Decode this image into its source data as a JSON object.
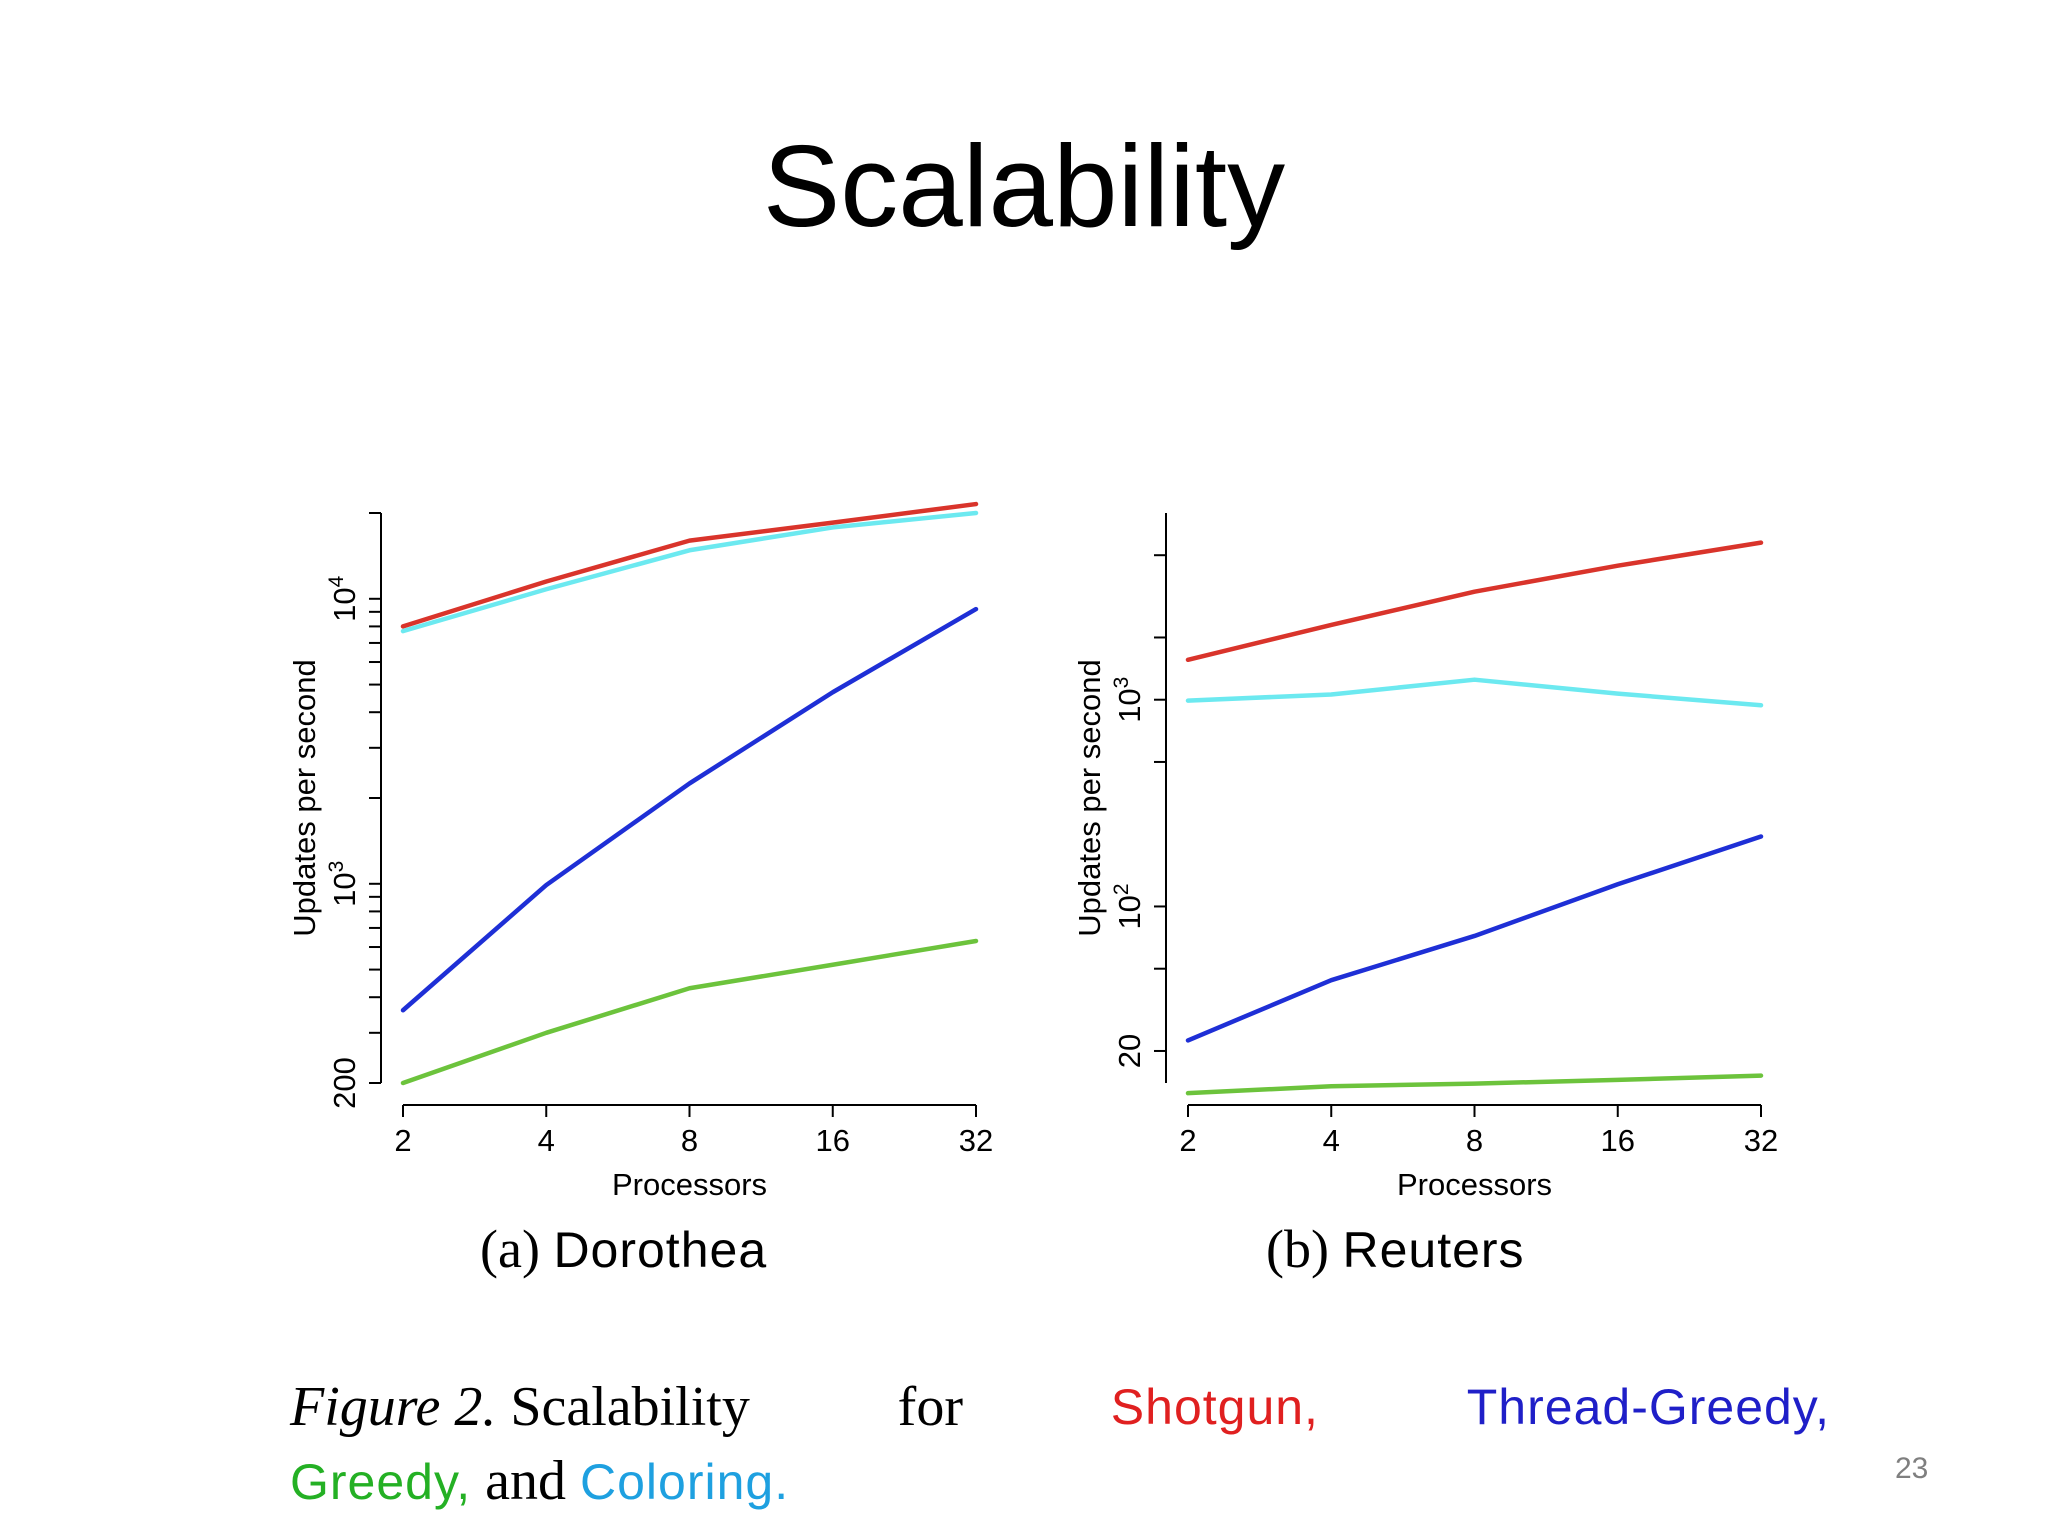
{
  "slide": {
    "title": "Scalability",
    "page_number": "23"
  },
  "subcaptions": {
    "a": {
      "prefix": "(a)",
      "name": "Dorothea"
    },
    "b": {
      "prefix": "(b)",
      "name": "Reuters"
    }
  },
  "figure_caption": {
    "label": "Figure 2.",
    "text": "Scalability",
    "for": "for",
    "shotgun": "Shotgun,",
    "thread_greedy": "Thread-Greedy,",
    "greedy": "Greedy,",
    "and": "and",
    "coloring": "Coloring."
  },
  "colors": {
    "shotgun": "#d9342b",
    "coloring": "#6ce9f0",
    "thread_greedy": "#1e2fd6",
    "greedy": "#6cc33c",
    "caption_shotgun": "#e02020",
    "caption_thread_greedy": "#1f1fc8",
    "caption_greedy": "#24b024",
    "caption_coloring": "#1ea0e0"
  },
  "chart_data": [
    {
      "type": "line",
      "panel": "a",
      "xlabel": "Processors",
      "ylabel": "Updates per second",
      "x_scale": "log2",
      "y_scale": "log10",
      "x": [
        2,
        4,
        8,
        16,
        32
      ],
      "x_ticks": [
        "2",
        "4",
        "8",
        "16",
        "32"
      ],
      "xlim": [
        2,
        32
      ],
      "ylim": [
        200,
        20000
      ],
      "y_ticks": [
        {
          "value": 200,
          "base": "200",
          "exp": ""
        },
        {
          "value": 1000,
          "base": "10",
          "exp": "3"
        },
        {
          "value": 10000,
          "base": "10",
          "exp": "4"
        }
      ],
      "y_minor_ticks": [
        300,
        400,
        500,
        600,
        700,
        800,
        900,
        2000,
        3000,
        4000,
        5000,
        6000,
        7000,
        8000,
        9000,
        20000
      ],
      "series": [
        {
          "key": "shotgun",
          "values": [
            8000,
            11500,
            16000,
            18500,
            21500
          ]
        },
        {
          "key": "coloring",
          "values": [
            7700,
            10800,
            14800,
            17800,
            20000
          ]
        },
        {
          "key": "thread_greedy",
          "values": [
            360,
            990,
            2250,
            4700,
            9200
          ]
        },
        {
          "key": "greedy",
          "values": [
            200,
            300,
            430,
            520,
            630
          ]
        }
      ]
    },
    {
      "type": "line",
      "panel": "b",
      "xlabel": "Processors",
      "ylabel": "Updates per second",
      "x_scale": "log2",
      "y_scale": "log10",
      "x": [
        2,
        4,
        8,
        16,
        32
      ],
      "x_ticks": [
        "2",
        "4",
        "8",
        "16",
        "32"
      ],
      "xlim": [
        2,
        32
      ],
      "ylim": [
        14,
        8000
      ],
      "y_ticks": [
        {
          "value": 20,
          "base": "20",
          "exp": ""
        },
        {
          "value": 100,
          "base": "10",
          "exp": "2"
        },
        {
          "value": 1000,
          "base": "10",
          "exp": "3"
        }
      ],
      "y_minor_ticks": [
        50,
        500,
        2000,
        5000
      ],
      "series": [
        {
          "key": "shotgun",
          "values": [
            1560,
            2300,
            3330,
            4450,
            5750
          ]
        },
        {
          "key": "coloring",
          "values": [
            990,
            1060,
            1250,
            1070,
            940
          ]
        },
        {
          "key": "thread_greedy",
          "values": [
            22.5,
            44,
            72,
            128,
            218
          ]
        },
        {
          "key": "greedy",
          "values": [
            12.5,
            13.5,
            13.9,
            14.5,
            15.2
          ]
        }
      ]
    }
  ]
}
